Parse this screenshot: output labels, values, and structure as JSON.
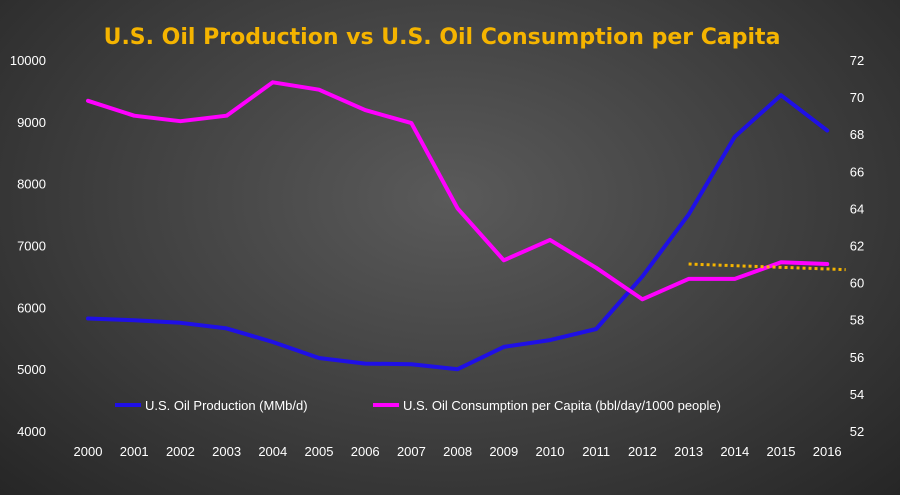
{
  "chart_data": {
    "type": "line",
    "title": "U.S. Oil Production vs U.S. Oil Consumption per Capita",
    "x": [
      "2000",
      "2001",
      "2002",
      "2003",
      "2004",
      "2005",
      "2006",
      "2007",
      "2008",
      "2009",
      "2010",
      "2011",
      "2012",
      "2013",
      "2014",
      "2015",
      "2016"
    ],
    "y_left_range": [
      4000,
      10000
    ],
    "y_left_ticks": [
      "4000",
      "5000",
      "6000",
      "7000",
      "8000",
      "9000",
      "10000"
    ],
    "y_right_range": [
      52,
      72
    ],
    "y_right_ticks": [
      "52",
      "54",
      "56",
      "58",
      "60",
      "62",
      "64",
      "66",
      "68",
      "70",
      "72"
    ],
    "series": [
      {
        "name": "U.S. Oil Production (MMb/d)",
        "axis": "left",
        "color": "#1f10e6",
        "values": [
          5820,
          5790,
          5750,
          5660,
          5440,
          5180,
          5090,
          5080,
          5000,
          5360,
          5470,
          5650,
          6500,
          7500,
          8760,
          9430,
          8860
        ]
      },
      {
        "name": "U.S. Oil Consumption per Capita (bbl/day/1000 people)",
        "axis": "right",
        "color": "#ff00ff",
        "values": [
          69.8,
          69.0,
          68.7,
          69.0,
          70.8,
          70.4,
          69.3,
          68.6,
          64.0,
          61.2,
          62.3,
          60.8,
          59.1,
          60.2,
          60.2,
          61.1,
          61.0
        ]
      }
    ],
    "trendline": {
      "axis": "right",
      "color": "#f5b400",
      "style": "dotted",
      "from": {
        "x": "2013",
        "y": 61.0
      },
      "to": {
        "x": "2016.4",
        "y": 60.7
      }
    },
    "grid": false,
    "legend": "bottom-inside"
  }
}
